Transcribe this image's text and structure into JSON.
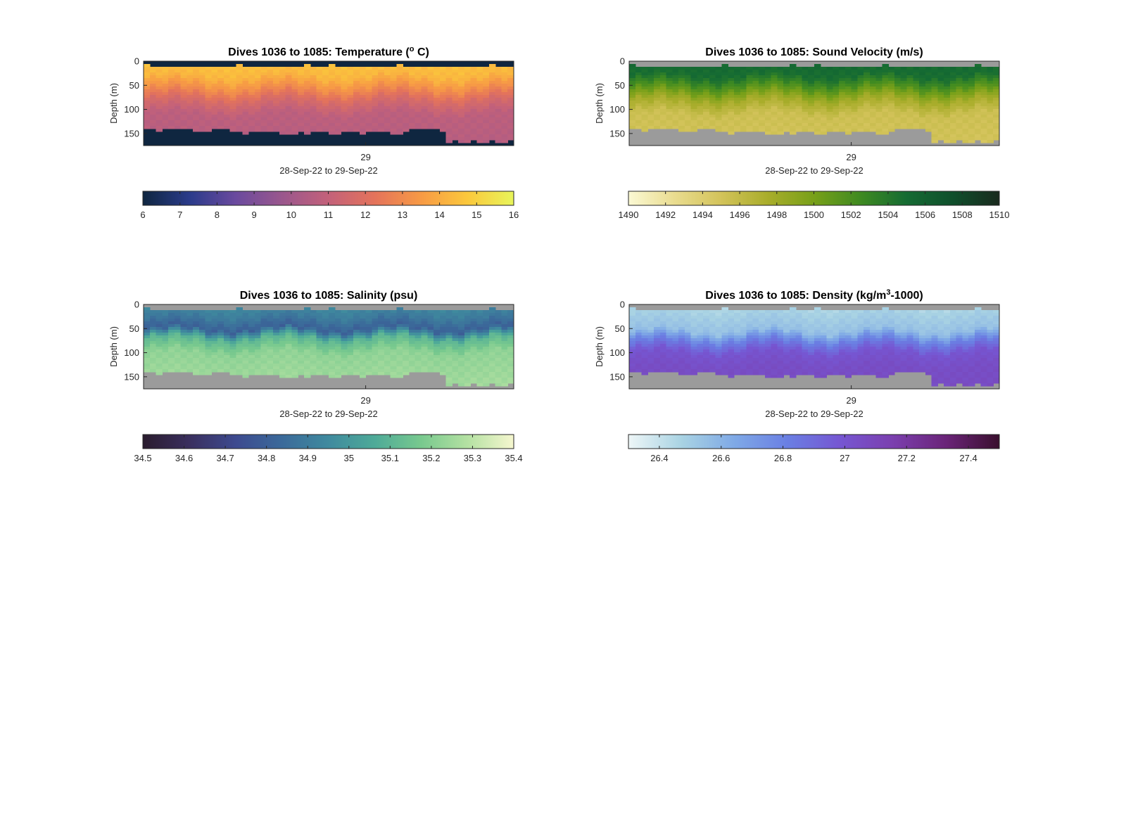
{
  "chart_data": [
    {
      "type": "heatmap",
      "title": "Dives 1036 to 1085: Temperature (° C)",
      "title_parts": {
        "pre": "Dives 1036 to 1085: Temperature (",
        "sup": "o",
        "post": " C)"
      },
      "ylabel": "Depth (m)",
      "yticks": [
        "0",
        "50",
        "100",
        "150"
      ],
      "ylim": [
        0,
        175
      ],
      "y_reversed": true,
      "xticks": [
        "29"
      ],
      "xlabel": "28-Sep-22 to 29-Sep-22",
      "colorbar": {
        "min": 6,
        "max": 16,
        "ticks": [
          "6",
          "7",
          "8",
          "9",
          "10",
          "11",
          "12",
          "13",
          "14",
          "15",
          "16"
        ],
        "tick_values": [
          6,
          7,
          8,
          9,
          10,
          11,
          12,
          13,
          14,
          15,
          16
        ],
        "colors": [
          "#0f2640",
          "#2a3b8a",
          "#6a4a9e",
          "#9a578d",
          "#c3617a",
          "#e4735b",
          "#f79a45",
          "#fbc83c",
          "#e8f55a"
        ]
      },
      "profile": [
        {
          "depth": 0,
          "value": 14.6
        },
        {
          "depth": 30,
          "value": 14.3
        },
        {
          "depth": 55,
          "value": 13.2
        },
        {
          "depth": 80,
          "value": 11.8
        },
        {
          "depth": 110,
          "value": 10.8
        },
        {
          "depth": 175,
          "value": 10.6
        }
      ],
      "no_data_color": "#0f2640"
    },
    {
      "type": "heatmap",
      "title": "Dives 1036 to 1085: Sound Velocity (m/s)",
      "title_parts": {
        "pre": "Dives 1036 to 1085: Sound Velocity (m/s)",
        "sup": "",
        "post": ""
      },
      "ylabel": "Depth (m)",
      "yticks": [
        "0",
        "50",
        "100",
        "150"
      ],
      "ylim": [
        0,
        175
      ],
      "y_reversed": true,
      "xticks": [
        "29"
      ],
      "xlabel": "28-Sep-22 to 29-Sep-22",
      "colorbar": {
        "min": 1490,
        "max": 1510,
        "ticks": [
          "1490",
          "1492",
          "1494",
          "1496",
          "1498",
          "1500",
          "1502",
          "1504",
          "1506",
          "1508",
          "1510"
        ],
        "tick_values": [
          1490,
          1492,
          1494,
          1496,
          1498,
          1500,
          1502,
          1504,
          1506,
          1508,
          1510
        ],
        "colors": [
          "#fbf9d4",
          "#e9dc8f",
          "#d3c35a",
          "#a9ad2b",
          "#78a019",
          "#3f8a21",
          "#156b33",
          "#0f4f2c",
          "#1a2a1e"
        ]
      },
      "profile": [
        {
          "depth": 0,
          "value": 1505.2
        },
        {
          "depth": 30,
          "value": 1504.8
        },
        {
          "depth": 55,
          "value": 1501.5
        },
        {
          "depth": 80,
          "value": 1497.8
        },
        {
          "depth": 110,
          "value": 1495.4
        },
        {
          "depth": 175,
          "value": 1495.0
        }
      ],
      "no_data_color": "#9b9b9b"
    },
    {
      "type": "heatmap",
      "title": "Dives 1036 to 1085: Salinity (psu)",
      "title_parts": {
        "pre": "Dives 1036 to 1085: Salinity (psu)",
        "sup": "",
        "post": ""
      },
      "ylabel": "Depth (m)",
      "yticks": [
        "0",
        "50",
        "100",
        "150"
      ],
      "ylim": [
        0,
        175
      ],
      "y_reversed": true,
      "xticks": [
        "29"
      ],
      "xlabel": "28-Sep-22 to 29-Sep-22",
      "colorbar": {
        "min": 34.5,
        "max": 35.4,
        "ticks": [
          "34.5",
          "34.6",
          "34.7",
          "34.8",
          "34.9",
          "35",
          "35.1",
          "35.2",
          "35.3",
          "35.4"
        ],
        "tick_values": [
          34.5,
          34.6,
          34.7,
          34.8,
          34.9,
          35.0,
          35.1,
          35.2,
          35.3,
          35.4
        ],
        "colors": [
          "#2a1c2e",
          "#3a2f5e",
          "#3d4a8f",
          "#3b6a9a",
          "#3f8a9e",
          "#4eaa98",
          "#78c98e",
          "#b4e1a2",
          "#f6f7cf"
        ]
      },
      "profile": [
        {
          "depth": 0,
          "value": 34.95
        },
        {
          "depth": 25,
          "value": 34.9
        },
        {
          "depth": 50,
          "value": 34.8
        },
        {
          "depth": 70,
          "value": 35.1
        },
        {
          "depth": 100,
          "value": 35.22
        },
        {
          "depth": 175,
          "value": 35.26
        }
      ],
      "no_data_color": "#9b9b9b"
    },
    {
      "type": "heatmap",
      "title": "Dives 1036 to 1085: Density (kg/m³-1000)",
      "title_parts": {
        "pre": "Dives 1036 to 1085: Density (kg/m",
        "sup": "3",
        "post": "-1000)"
      },
      "ylabel": "Depth (m)",
      "yticks": [
        "0",
        "50",
        "100",
        "150"
      ],
      "ylim": [
        0,
        175
      ],
      "y_reversed": true,
      "xticks": [
        "29"
      ],
      "xlabel": "28-Sep-22 to 29-Sep-22",
      "colorbar": {
        "min": 26.3,
        "max": 27.5,
        "ticks": [
          "26.4",
          "26.6",
          "26.8",
          "27",
          "27.2",
          "27.4"
        ],
        "tick_values": [
          26.4,
          26.6,
          26.8,
          27.0,
          27.2,
          27.4
        ],
        "colors": [
          "#eef6f7",
          "#a9d3e3",
          "#7fa9e6",
          "#6a7fe3",
          "#7656d2",
          "#7b3fae",
          "#6a2478",
          "#3a0f2e"
        ]
      },
      "profile": [
        {
          "depth": 0,
          "value": 26.45
        },
        {
          "depth": 55,
          "value": 26.55
        },
        {
          "depth": 75,
          "value": 26.8
        },
        {
          "depth": 100,
          "value": 27.0
        },
        {
          "depth": 130,
          "value": 27.05
        },
        {
          "depth": 175,
          "value": 27.06
        }
      ],
      "no_data_color": "#9b9b9b"
    }
  ]
}
